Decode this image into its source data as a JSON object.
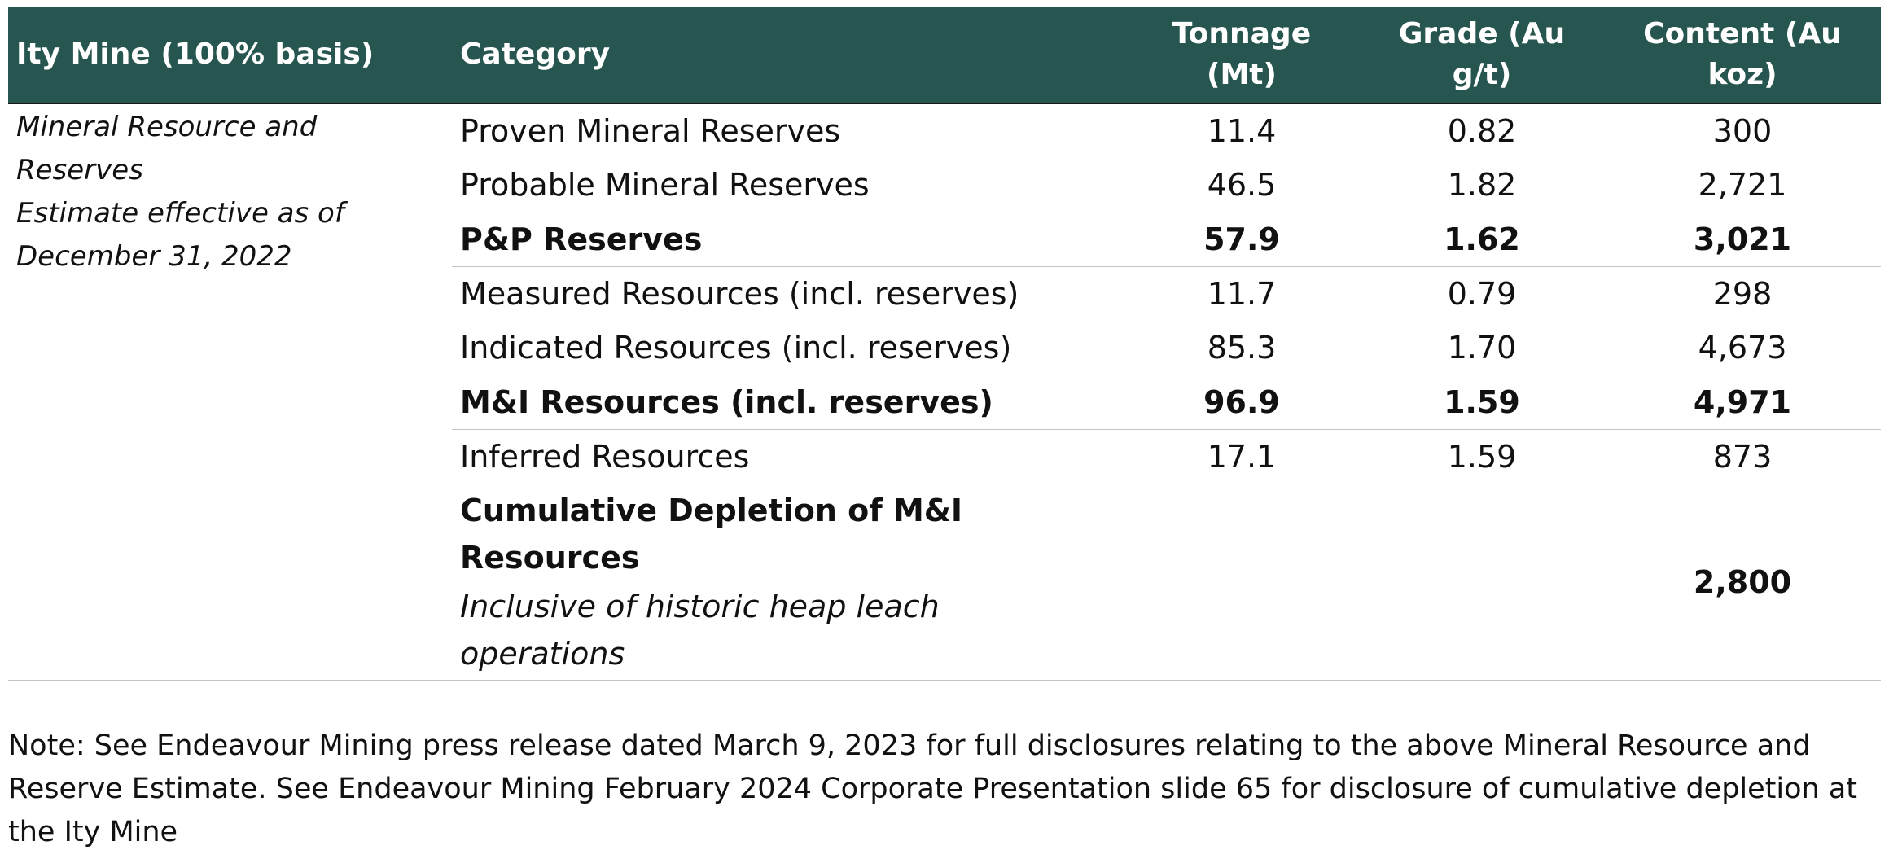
{
  "headers": {
    "mine": "Ity Mine (100% basis)",
    "category": "Category",
    "tonnage_l1": "Tonnage",
    "tonnage_l2": "(Mt)",
    "grade_l1": "Grade (Au",
    "grade_l2": "g/t)",
    "content_l1": "Content (Au",
    "content_l2": "koz)"
  },
  "estimate_label": {
    "line1": "Mineral Resource and",
    "line2": "Reserves",
    "line3": "Estimate effective as of",
    "line4": "December 31, 2022"
  },
  "rows": [
    {
      "category": "Proven Mineral Reserves",
      "tonnage": "11.4",
      "grade": "0.82",
      "content": "300"
    },
    {
      "category": "Probable Mineral Reserves",
      "tonnage": "46.5",
      "grade": "1.82",
      "content": "2,721"
    },
    {
      "category": "P&P Reserves",
      "tonnage": "57.9",
      "grade": "1.62",
      "content": "3,021"
    },
    {
      "category": "Measured Resources (incl. reserves)",
      "tonnage": "11.7",
      "grade": "0.79",
      "content": "298"
    },
    {
      "category": "Indicated Resources (incl. reserves)",
      "tonnage": "85.3",
      "grade": "1.70",
      "content": "4,673"
    },
    {
      "category": "M&I Resources (incl. reserves)",
      "tonnage": "96.9",
      "grade": "1.59",
      "content": "4,971"
    },
    {
      "category": "Inferred Resources",
      "tonnage": "17.1",
      "grade": "1.59",
      "content": "873"
    }
  ],
  "depletion": {
    "title_l1": "Cumulative Depletion of M&I",
    "title_l2": "Resources",
    "sub_l1": "Inclusive of historic heap leach",
    "sub_l2": "operations",
    "content": "2,800"
  },
  "note": {
    "line1": "Note: See Endeavour Mining press release dated March 9, 2023 for full disclosures relating to the above Mineral Resource and",
    "line2": "Reserve Estimate. See Endeavour Mining February 2024 Corporate Presentation slide 65 for disclosure of cumulative depletion at",
    "line3": "the Ity Mine"
  },
  "colors": {
    "header_bg": "#275650",
    "header_text": "#ffffff",
    "separator": "#c4c4c4"
  }
}
